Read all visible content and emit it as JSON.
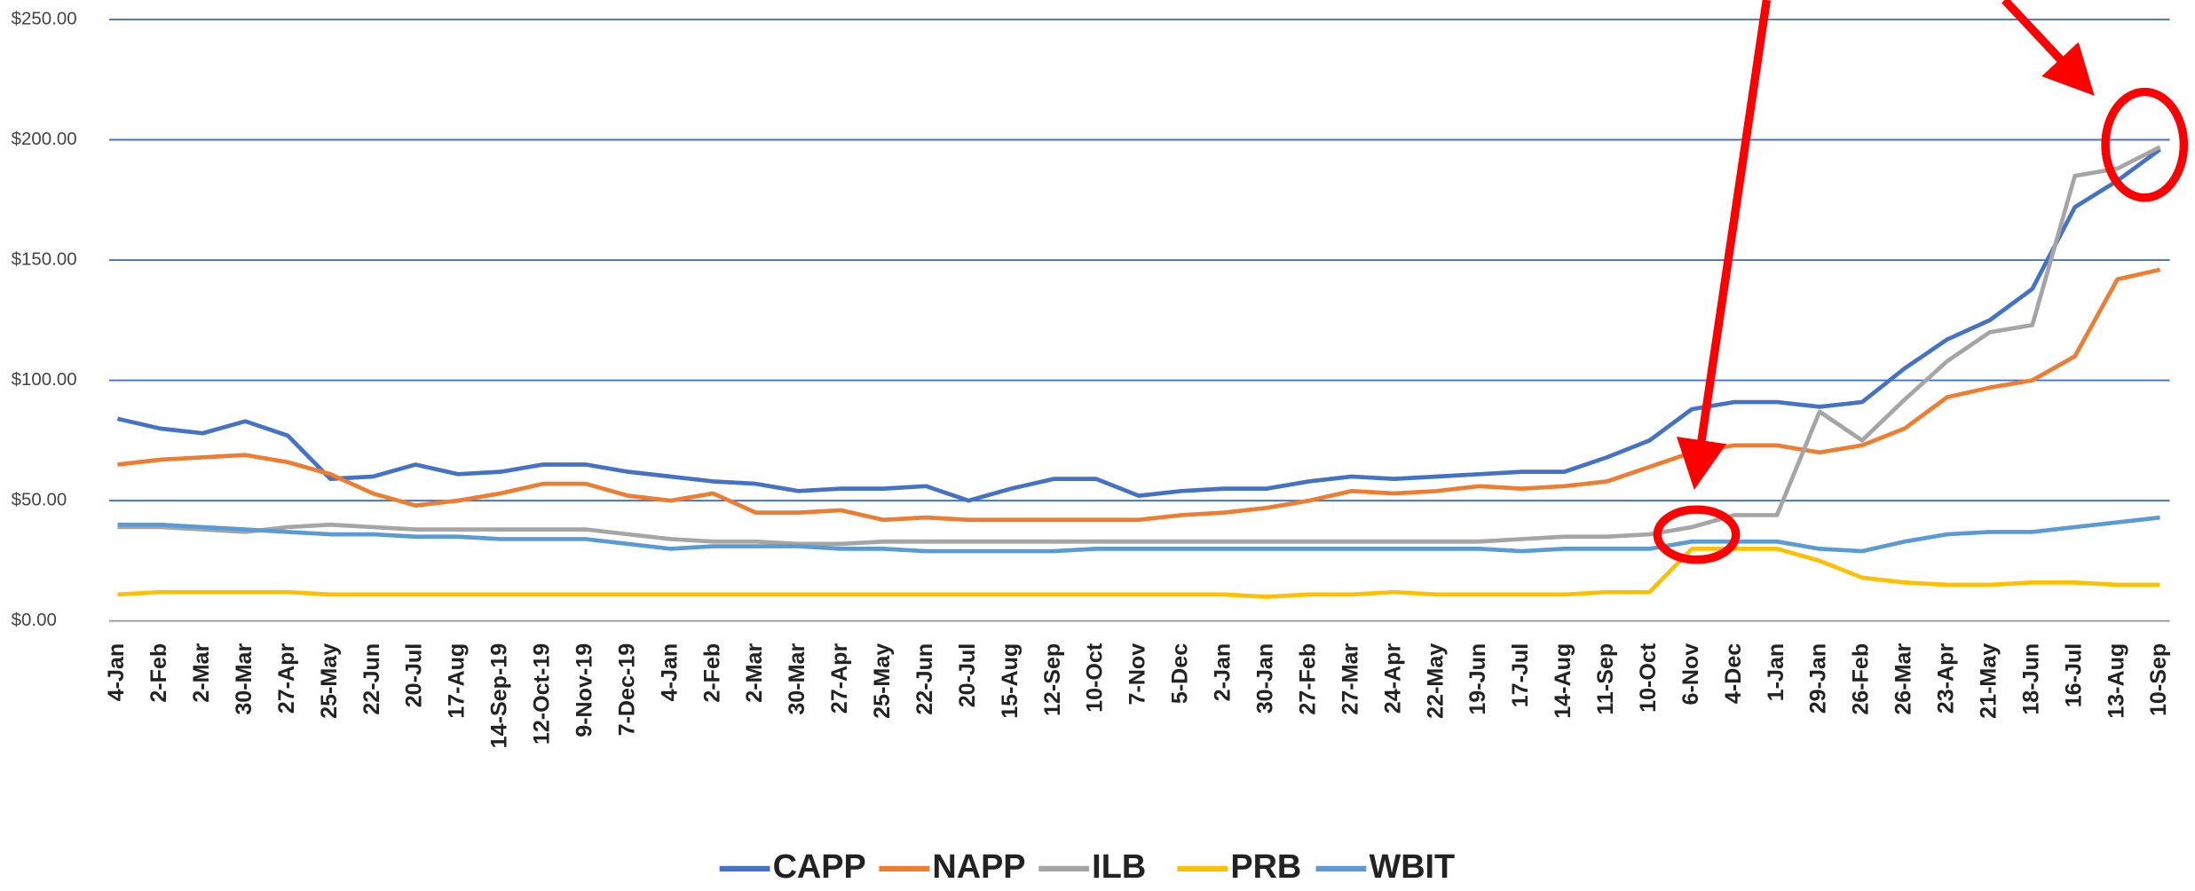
{
  "chart_data": {
    "type": "line",
    "categories": [
      "4-Jan",
      "2-Feb",
      "2-Mar",
      "30-Mar",
      "27-Apr",
      "25-May",
      "22-Jun",
      "20-Jul",
      "17-Aug",
      "14-Sep-19",
      "12-Oct-19",
      "9-Nov-19",
      "7-Dec-19",
      "4-Jan",
      "2-Feb",
      "2-Mar",
      "30-Mar",
      "27-Apr",
      "25-May",
      "22-Jun",
      "20-Jul",
      "15-Aug",
      "12-Sep",
      "10-Oct",
      "7-Nov",
      "5-Dec",
      "2-Jan",
      "30-Jan",
      "27-Feb",
      "27-Mar",
      "24-Apr",
      "22-May",
      "19-Jun",
      "17-Jul",
      "14-Aug",
      "11-Sep",
      "10-Oct",
      "6-Nov",
      "4-Dec",
      "1-Jan",
      "29-Jan",
      "26-Feb",
      "26-Mar",
      "23-Apr",
      "21-May",
      "18-Jun",
      "16-Jul",
      "13-Aug",
      "10-Sep"
    ],
    "series": [
      {
        "name": "CAPP",
        "color": "#4472c4",
        "values": [
          84,
          80,
          78,
          83,
          77,
          59,
          60,
          65,
          61,
          62,
          65,
          65,
          62,
          60,
          58,
          57,
          54,
          55,
          55,
          56,
          50,
          55,
          59,
          59,
          52,
          54,
          55,
          55,
          58,
          60,
          59,
          60,
          61,
          62,
          62,
          68,
          75,
          88,
          91,
          91,
          89,
          91,
          105,
          117,
          125,
          138,
          172,
          183,
          196
        ]
      },
      {
        "name": "NAPP",
        "color": "#ed7d31",
        "values": [
          65,
          67,
          68,
          69,
          66,
          61,
          53,
          48,
          50,
          53,
          57,
          57,
          52,
          50,
          53,
          45,
          45,
          46,
          42,
          43,
          42,
          42,
          42,
          42,
          42,
          44,
          45,
          47,
          50,
          54,
          53,
          54,
          56,
          55,
          56,
          58,
          64,
          70,
          73,
          73,
          70,
          73,
          80,
          93,
          97,
          100,
          110,
          142,
          146
        ]
      },
      {
        "name": "ILB",
        "color": "#a5a5a5",
        "values": [
          39,
          39,
          38,
          37,
          39,
          40,
          39,
          38,
          38,
          38,
          38,
          38,
          36,
          34,
          33,
          33,
          32,
          32,
          33,
          33,
          33,
          33,
          33,
          33,
          33,
          33,
          33,
          33,
          33,
          33,
          33,
          33,
          33,
          34,
          35,
          35,
          36,
          39,
          44,
          44,
          87,
          75,
          92,
          108,
          120,
          123,
          185,
          188,
          197
        ]
      },
      {
        "name": "PRB",
        "color": "#ffc000",
        "values": [
          11,
          12,
          12,
          12,
          12,
          11,
          11,
          11,
          11,
          11,
          11,
          11,
          11,
          11,
          11,
          11,
          11,
          11,
          11,
          11,
          11,
          11,
          11,
          11,
          11,
          11,
          11,
          10,
          11,
          11,
          12,
          11,
          11,
          11,
          11,
          12,
          12,
          30,
          30,
          30,
          25,
          18,
          16,
          15,
          15,
          16,
          16,
          15,
          15
        ]
      },
      {
        "name": "WBIT",
        "color": "#5b9bd5",
        "values": [
          40,
          40,
          39,
          38,
          37,
          36,
          36,
          35,
          35,
          34,
          34,
          34,
          32,
          30,
          31,
          31,
          31,
          30,
          30,
          29,
          29,
          29,
          29,
          30,
          30,
          30,
          30,
          30,
          30,
          30,
          30,
          30,
          30,
          29,
          30,
          30,
          30,
          33,
          33,
          33,
          30,
          29,
          33,
          36,
          37,
          37,
          39,
          41,
          43
        ]
      }
    ],
    "ylim": [
      0,
      250
    ],
    "yticks": [
      {
        "value": 0,
        "label": "$0.00"
      },
      {
        "value": 50,
        "label": "$50.00"
      },
      {
        "value": 100,
        "label": "$100.00"
      },
      {
        "value": 150,
        "label": "$150.00"
      },
      {
        "value": 200,
        "label": "$200.00"
      },
      {
        "value": 250,
        "label": "$250.00"
      }
    ],
    "grid": true,
    "legend": "bottom"
  }
}
